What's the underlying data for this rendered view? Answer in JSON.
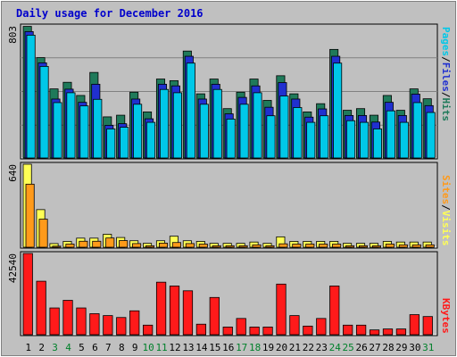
{
  "title": "Daily usage for December 2016",
  "colors": {
    "background": "#c0c0c0",
    "panel_bg": "#c0c0c0",
    "hits": "#1f7a5a",
    "files": "#2030d0",
    "pages": "#00c8e8",
    "visits": "#ffff55",
    "sites": "#ff9a1a",
    "kbytes": "#ff1a1a",
    "title": "#0000cc"
  },
  "panels": {
    "top": {
      "max_label": "803",
      "legend": [
        "Pages",
        "/",
        "Files",
        "/",
        "Hits"
      ]
    },
    "mid": {
      "max_label": "640",
      "legend": [
        "Sites",
        "/",
        "Visits"
      ]
    },
    "bot": {
      "max_label": "42540",
      "legend": [
        "KBytes"
      ]
    }
  },
  "chart_data": [
    {
      "type": "bar",
      "title": "Daily usage for December 2016",
      "ylim": [
        0,
        803
      ],
      "ymax_label": "803",
      "categories": [
        "1",
        "2",
        "3",
        "4",
        "5",
        "6",
        "7",
        "8",
        "9",
        "10",
        "11",
        "12",
        "13",
        "14",
        "15",
        "16",
        "17",
        "18",
        "19",
        "20",
        "21",
        "22",
        "23",
        "24",
        "25",
        "26",
        "27",
        "28",
        "29",
        "30",
        "31"
      ],
      "weekend_days": [
        "3",
        "4",
        "10",
        "11",
        "17",
        "18",
        "24",
        "25",
        "31"
      ],
      "series": [
        {
          "name": "Hits",
          "values": [
            800,
            610,
            420,
            460,
            380,
            520,
            250,
            260,
            400,
            280,
            480,
            470,
            650,
            390,
            480,
            300,
            400,
            480,
            350,
            500,
            390,
            280,
            330,
            660,
            290,
            300,
            260,
            380,
            290,
            420,
            360
          ]
        },
        {
          "name": "Files",
          "values": [
            790,
            600,
            380,
            440,
            360,
            470,
            220,
            230,
            380,
            260,
            470,
            460,
            640,
            380,
            470,
            290,
            390,
            460,
            330,
            480,
            380,
            270,
            320,
            640,
            280,
            280,
            240,
            360,
            280,
            410,
            340
          ]
        },
        {
          "name": "Pages",
          "values": [
            790,
            600,
            380,
            440,
            360,
            400,
            220,
            230,
            370,
            260,
            460,
            440,
            620,
            370,
            460,
            280,
            370,
            440,
            300,
            420,
            350,
            260,
            300,
            620,
            270,
            260,
            220,
            330,
            260,
            380,
            320
          ]
        }
      ]
    },
    {
      "type": "bar",
      "ylim": [
        0,
        640
      ],
      "ymax_label": "640",
      "categories": [
        "1",
        "2",
        "3",
        "4",
        "5",
        "6",
        "7",
        "8",
        "9",
        "10",
        "11",
        "12",
        "13",
        "14",
        "15",
        "16",
        "17",
        "18",
        "19",
        "20",
        "21",
        "22",
        "23",
        "24",
        "25",
        "26",
        "27",
        "28",
        "29",
        "30",
        "31"
      ],
      "series": [
        {
          "name": "Visits",
          "values": [
            640,
            290,
            28,
            45,
            70,
            70,
            100,
            75,
            50,
            30,
            50,
            85,
            50,
            45,
            30,
            30,
            30,
            40,
            30,
            80,
            45,
            45,
            45,
            45,
            30,
            30,
            30,
            45,
            40,
            40,
            40
          ]
        },
        {
          "name": "Sites",
          "values": [
            500,
            230,
            22,
            38,
            60,
            60,
            85,
            65,
            42,
            25,
            45,
            50,
            42,
            38,
            25,
            25,
            25,
            32,
            25,
            40,
            38,
            38,
            38,
            38,
            25,
            25,
            25,
            38,
            32,
            32,
            32
          ]
        }
      ]
    },
    {
      "type": "bar",
      "ylim": [
        0,
        42540
      ],
      "ymax_label": "42540",
      "categories": [
        "1",
        "2",
        "3",
        "4",
        "5",
        "6",
        "7",
        "8",
        "9",
        "10",
        "11",
        "12",
        "13",
        "14",
        "15",
        "16",
        "17",
        "18",
        "19",
        "20",
        "21",
        "22",
        "23",
        "24",
        "25",
        "26",
        "27",
        "28",
        "29",
        "30",
        "31"
      ],
      "series": [
        {
          "name": "KBytes",
          "values": [
            42540,
            28000,
            14000,
            18000,
            14000,
            11000,
            10000,
            9000,
            12500,
            5000,
            27500,
            25500,
            23000,
            5500,
            19500,
            4000,
            8500,
            4000,
            4000,
            26500,
            10000,
            4500,
            8500,
            25500,
            5000,
            5000,
            2500,
            3000,
            3000,
            10500,
            9500
          ]
        }
      ]
    }
  ]
}
